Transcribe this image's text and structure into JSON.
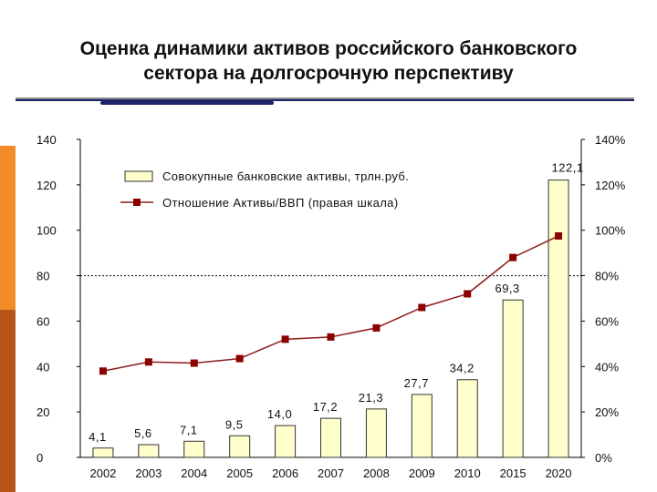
{
  "slide": {
    "title_line1": "Оценка динамики активов российского банковского",
    "title_line2": "сектора на долгосрочную перспективу"
  },
  "colors": {
    "bar_fill": "#ffffcc",
    "bar_stroke": "#333333",
    "line": "#8b1a1a",
    "marker": "#8b0000",
    "stripe_orange": "#f28c28",
    "stripe_brown": "#b8541a",
    "title_rule": "#1f2368"
  },
  "chart_data": {
    "type": "bar",
    "categories": [
      "2002",
      "2003",
      "2004",
      "2005",
      "2006",
      "2007",
      "2008",
      "2009",
      "2010",
      "2015",
      "2020"
    ],
    "series": [
      {
        "name": "Совокупные банковские активы, трлн.руб.",
        "type": "bar",
        "axis": "left",
        "values": [
          4.1,
          5.6,
          7.1,
          9.5,
          14.0,
          17.2,
          21.3,
          27.7,
          34.2,
          69.3,
          122.1
        ],
        "labels": [
          "4,1",
          "5,6",
          "7,1",
          "9,5",
          "14,0",
          "17,2",
          "21,3",
          "27,7",
          "34,2",
          "69,3",
          "122,1"
        ]
      },
      {
        "name": "Отношение Активы/ВВП (правая шкала)",
        "type": "line",
        "axis": "right",
        "values": [
          38,
          42,
          41.5,
          43.5,
          52,
          53,
          57,
          66,
          72,
          88,
          97.5
        ]
      }
    ],
    "y_left": {
      "ticks": [
        "0",
        "20",
        "40",
        "60",
        "80",
        "100",
        "120",
        "140"
      ],
      "range": [
        0,
        140
      ]
    },
    "y_right": {
      "ticks": [
        "0%",
        "20%",
        "40%",
        "60%",
        "80%",
        "100%",
        "120%",
        "140%"
      ],
      "range": [
        0,
        140
      ]
    },
    "reference_line": {
      "value": 80,
      "style": "dotted"
    },
    "legend": {
      "position": "top-left"
    },
    "grid": false
  }
}
